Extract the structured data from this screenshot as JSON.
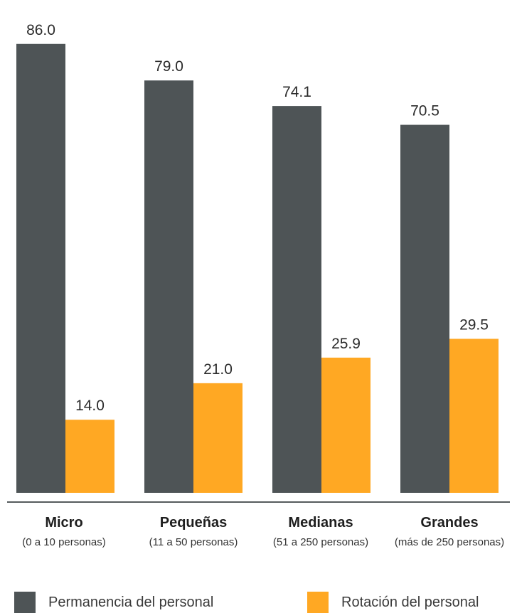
{
  "chart_data": {
    "type": "bar",
    "categories": [
      "Micro",
      "Pequeñas",
      "Medianas",
      "Grandes"
    ],
    "category_subtitles": [
      "(0 a 10 personas)",
      "(11 a 50 personas)",
      "(51 a 250 personas)",
      "(más de 250 personas)"
    ],
    "series": [
      {
        "name": "Permanencia del personal",
        "values": [
          86.0,
          79.0,
          74.1,
          70.5
        ],
        "labels": [
          "86.0",
          "79.0",
          "74.1",
          "70.5"
        ],
        "color": "#4e5456"
      },
      {
        "name": "Rotación del personal",
        "values": [
          14.0,
          21.0,
          25.9,
          29.5
        ],
        "labels": [
          "14.0",
          "21.0",
          "25.9",
          "29.5"
        ],
        "color": "#ffa823"
      }
    ],
    "ylim": [
      0,
      100
    ],
    "grid": false,
    "legend": "bottom"
  }
}
